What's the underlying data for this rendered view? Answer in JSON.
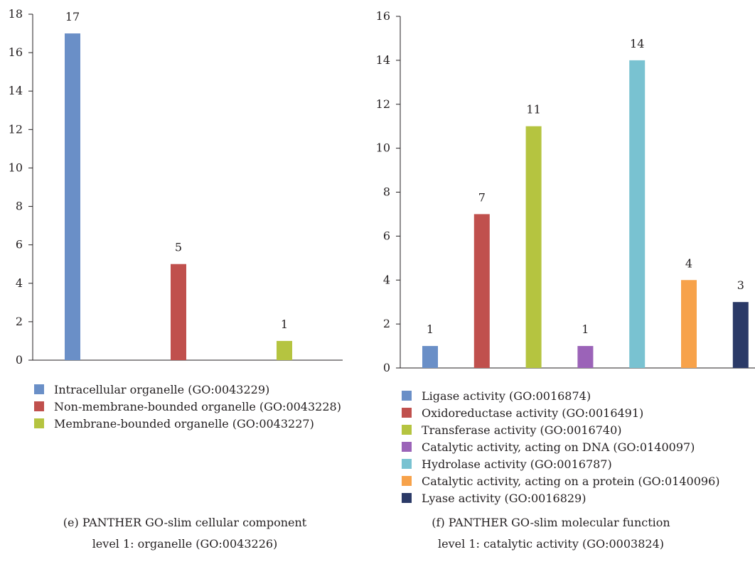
{
  "chart_data": [
    {
      "type": "bar",
      "categories": [
        "Intracellular organelle (GO:0043229)",
        "Non-membrane-bounded organelle (GO:0043228)",
        "Membrane-bounded organelle (GO:0043227)"
      ],
      "values": [
        17,
        5,
        1
      ],
      "colors": [
        "#6a8fc7",
        "#c0504d",
        "#b5c440"
      ],
      "ylim": [
        0,
        18
      ],
      "yticks": [
        "0",
        "2",
        "4",
        "6",
        "8",
        "10",
        "12",
        "14",
        "16",
        "18"
      ],
      "value_labels": [
        "17",
        "5",
        "1"
      ],
      "grid": false,
      "legend_position": "bottom",
      "caption_line1": "(e) PANTHER GO-slim cellular component",
      "caption_line2": "level 1: organelle (GO:0043226)"
    },
    {
      "type": "bar",
      "categories": [
        "Ligase activity (GO:0016874)",
        "Oxidoreductase activity (GO:0016491)",
        "Transferase activity (GO:0016740)",
        "Catalytic activity, acting on DNA (GO:0140097)",
        "Hydrolase activity (GO:0016787)",
        "Catalytic activity, acting on a protein (GO:0140096)",
        "Lyase activity (GO:0016829)"
      ],
      "values": [
        1,
        7,
        11,
        1,
        14,
        4,
        3
      ],
      "colors": [
        "#6a8fc7",
        "#c0504d",
        "#b5c440",
        "#9b63b8",
        "#79c2d1",
        "#f7a24a",
        "#2b3a67"
      ],
      "ylim": [
        0,
        16
      ],
      "yticks": [
        "0",
        "2",
        "4",
        "6",
        "8",
        "10",
        "12",
        "14",
        "16"
      ],
      "value_labels": [
        "1",
        "7",
        "11",
        "1",
        "14",
        "4",
        "3"
      ],
      "grid": false,
      "legend_position": "bottom",
      "caption_line1": "(f) PANTHER GO-slim molecular function",
      "caption_line2": "level 1: catalytic activity (GO:0003824)"
    }
  ]
}
